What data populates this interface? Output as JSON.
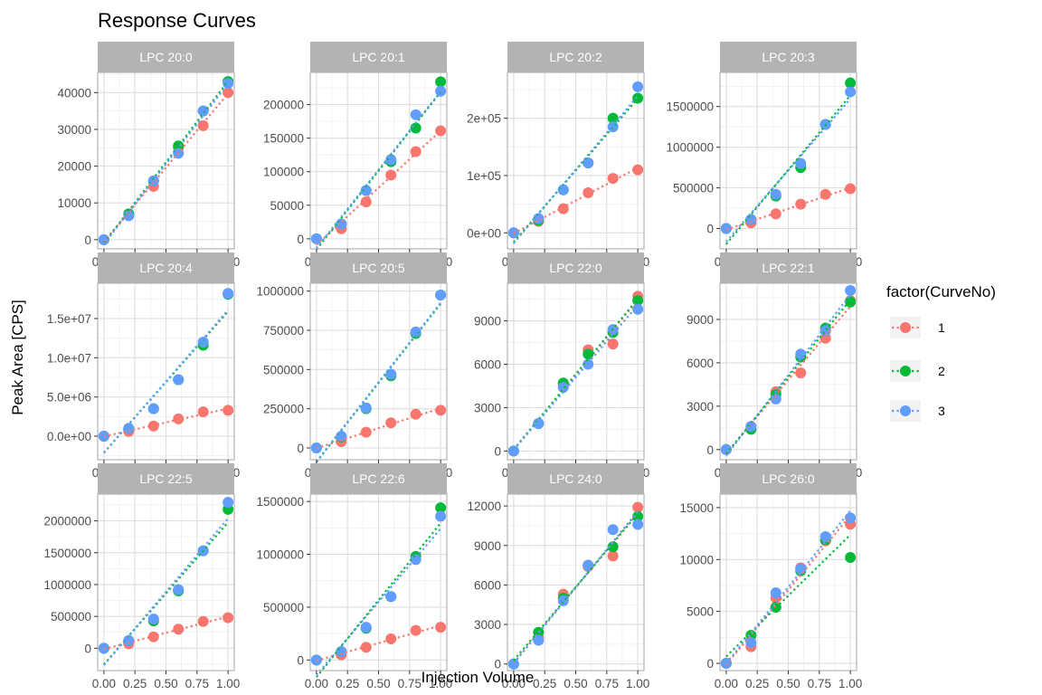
{
  "chart_data": {
    "type": "scatter",
    "title": "Response Curves",
    "xlabel": "Injection Volume",
    "ylabel": "Peak Area [CPS]",
    "legend": {
      "title": "factor(CurveNo)",
      "position": "right",
      "entries": [
        {
          "label": "1",
          "color": "#F8766D"
        },
        {
          "label": "2",
          "color": "#00BA38"
        },
        {
          "label": "3",
          "color": "#619CFF"
        }
      ]
    },
    "grid": true,
    "x": [
      0,
      0.2,
      0.4,
      0.6,
      0.8,
      1.0
    ],
    "xticks": [
      "0.00",
      "0.25",
      "0.50",
      "0.75",
      "1.00"
    ],
    "xtick_values": [
      0,
      0.25,
      0.5,
      0.75,
      1.0
    ],
    "xlim": [
      -0.05,
      1.05
    ],
    "panels": [
      {
        "title": "LPC 20:0",
        "ylim": [
          -2500,
          45500
        ],
        "yticks": [
          0,
          10000,
          20000,
          30000,
          40000
        ],
        "ytick_labels": [
          "0",
          "10000",
          "20000",
          "30000",
          "40000"
        ],
        "series": [
          {
            "name": "1",
            "values": [
              0,
              7000,
              14500,
              25000,
              31000,
              40000
            ]
          },
          {
            "name": "2",
            "values": [
              0,
              7000,
              16000,
              25500,
              35000,
              43000
            ]
          },
          {
            "name": "3",
            "values": [
              0,
              6500,
              16000,
              23500,
              35000,
              42500
            ]
          }
        ]
      },
      {
        "title": "LPC 20:1",
        "ylim": [
          -15000,
          248000
        ],
        "yticks": [
          0,
          50000,
          100000,
          150000,
          200000
        ],
        "ytick_labels": [
          "0",
          "50000",
          "100000",
          "150000",
          "200000"
        ],
        "series": [
          {
            "name": "1",
            "values": [
              0,
              15000,
              55000,
              95000,
              130000,
              161000
            ]
          },
          {
            "name": "2",
            "values": [
              0,
              22000,
              72000,
              115000,
              165000,
              234000
            ]
          },
          {
            "name": "3",
            "values": [
              0,
              22000,
              72000,
              118000,
              185000,
              220000
            ]
          }
        ]
      },
      {
        "title": "LPC 20:2",
        "ylim": [
          -28000,
          280000
        ],
        "yticks": [
          0,
          100000,
          200000
        ],
        "ytick_labels": [
          "0e+00",
          "1e+05",
          "2e+05"
        ],
        "series": [
          {
            "name": "1",
            "values": [
              0,
              20000,
              42000,
              70000,
              95000,
              110000
            ]
          },
          {
            "name": "2",
            "values": [
              0,
              22000,
              75000,
              122000,
              200000,
              235000
            ]
          },
          {
            "name": "3",
            "values": [
              0,
              25000,
              75000,
              122000,
              185000,
              255000
            ]
          }
        ]
      },
      {
        "title": "LPC 20:3",
        "ylim": [
          -250000,
          1920000
        ],
        "yticks": [
          0,
          500000,
          1000000,
          1500000
        ],
        "ytick_labels": [
          "0",
          "500000",
          "1000000",
          "1500000"
        ],
        "series": [
          {
            "name": "1",
            "values": [
              0,
              70000,
              180000,
              300000,
              420000,
              490000
            ]
          },
          {
            "name": "2",
            "values": [
              0,
              110000,
              400000,
              750000,
              1280000,
              1790000
            ]
          },
          {
            "name": "3",
            "values": [
              0,
              110000,
              420000,
              800000,
              1280000,
              1680000
            ]
          }
        ]
      },
      {
        "title": "LPC 20:4",
        "ylim": [
          -3000000,
          19500000
        ],
        "yticks": [
          0,
          5000000,
          10000000,
          15000000
        ],
        "ytick_labels": [
          "0.0e+00",
          "5.0e+06",
          "1.0e+07",
          "1.5e+07"
        ],
        "series": [
          {
            "name": "1",
            "values": [
              0,
              600000,
              1300000,
              2200000,
              3100000,
              3300000
            ]
          },
          {
            "name": "2",
            "values": [
              0,
              1000000,
              3500000,
              7200000,
              11600000,
              18100000
            ]
          },
          {
            "name": "3",
            "values": [
              0,
              1000000,
              3500000,
              7200000,
              12000000,
              18200000
            ]
          }
        ]
      },
      {
        "title": "LPC 20:5",
        "ylim": [
          -75000,
          1050000
        ],
        "yticks": [
          0,
          250000,
          500000,
          750000,
          1000000
        ],
        "ytick_labels": [
          "0",
          "250000",
          "500000",
          "750000",
          "1000000"
        ],
        "series": [
          {
            "name": "1",
            "values": [
              0,
              40000,
              100000,
              160000,
              215000,
              240000
            ]
          },
          {
            "name": "2",
            "values": [
              0,
              70000,
              250000,
              460000,
              730000,
              975000
            ]
          },
          {
            "name": "3",
            "values": [
              0,
              75000,
              255000,
              470000,
              740000,
              975000
            ]
          }
        ]
      },
      {
        "title": "LPC 22:0",
        "ylim": [
          -600,
          11600
        ],
        "yticks": [
          0,
          3000,
          6000,
          9000
        ],
        "ytick_labels": [
          "0",
          "3000",
          "6000",
          "9000"
        ],
        "series": [
          {
            "name": "1",
            "values": [
              0,
              1900,
              4600,
              7000,
              7400,
              10700
            ]
          },
          {
            "name": "2",
            "values": [
              0,
              1900,
              4700,
              6700,
              8200,
              10400
            ]
          },
          {
            "name": "3",
            "values": [
              0,
              1900,
              4400,
              6000,
              8400,
              9800
            ]
          }
        ]
      },
      {
        "title": "LPC 22:1",
        "ylim": [
          -700,
          11500
        ],
        "yticks": [
          0,
          3000,
          6000,
          9000
        ],
        "ytick_labels": [
          "0",
          "3000",
          "6000",
          "9000"
        ],
        "series": [
          {
            "name": "1",
            "values": [
              0,
              1600,
              4000,
              5300,
              7700,
              10300
            ]
          },
          {
            "name": "2",
            "values": [
              0,
              1400,
              3800,
              6400,
              8400,
              10200
            ]
          },
          {
            "name": "3",
            "values": [
              0,
              1600,
              3500,
              6600,
              8200,
              11000
            ]
          }
        ]
      },
      {
        "title": "LPC 22:5",
        "ylim": [
          -350000,
          2420000
        ],
        "yticks": [
          0,
          500000,
          1000000,
          1500000,
          2000000
        ],
        "ytick_labels": [
          "0",
          "500000",
          "1000000",
          "1500000",
          "2000000"
        ],
        "series": [
          {
            "name": "1",
            "values": [
              0,
              70000,
              180000,
              300000,
              420000,
              480000
            ]
          },
          {
            "name": "2",
            "values": [
              0,
              120000,
              430000,
              900000,
              1530000,
              2180000
            ]
          },
          {
            "name": "3",
            "values": [
              0,
              120000,
              460000,
              920000,
              1530000,
              2290000
            ]
          }
        ]
      },
      {
        "title": "LPC 22:6",
        "ylim": [
          -100000,
          1570000
        ],
        "yticks": [
          0,
          500000,
          1000000,
          1500000
        ],
        "ytick_labels": [
          "0",
          "500000",
          "1000000",
          "1500000"
        ],
        "series": [
          {
            "name": "1",
            "values": [
              0,
              50000,
              120000,
              200000,
              280000,
              310000
            ]
          },
          {
            "name": "2",
            "values": [
              0,
              80000,
              300000,
              600000,
              980000,
              1440000
            ]
          },
          {
            "name": "3",
            "values": [
              0,
              80000,
              310000,
              600000,
              950000,
              1360000
            ]
          }
        ]
      },
      {
        "title": "LPC 24:0",
        "ylim": [
          -500,
          12900
        ],
        "yticks": [
          0,
          3000,
          6000,
          9000,
          12000
        ],
        "ytick_labels": [
          "0",
          "3000",
          "6000",
          "9000",
          "12000"
        ],
        "series": [
          {
            "name": "1",
            "values": [
              0,
              2000,
              5300,
              7400,
              8200,
              11900
            ]
          },
          {
            "name": "2",
            "values": [
              0,
              2400,
              5000,
              7500,
              8900,
              11200
            ]
          },
          {
            "name": "3",
            "values": [
              0,
              1800,
              4800,
              7500,
              10200,
              10600
            ]
          }
        ]
      },
      {
        "title": "LPC 26:0",
        "ylim": [
          -700,
          16300
        ],
        "yticks": [
          0,
          5000,
          10000,
          15000
        ],
        "ytick_labels": [
          "0",
          "5000",
          "10000",
          "15000"
        ],
        "series": [
          {
            "name": "1",
            "values": [
              0,
              1600,
              6300,
              9200,
              11800,
              13400
            ]
          },
          {
            "name": "2",
            "values": [
              0,
              2700,
              5400,
              8900,
              11900,
              10200
            ]
          },
          {
            "name": "3",
            "values": [
              0,
              2000,
              6800,
              9100,
              12200,
              14000
            ]
          }
        ]
      }
    ]
  }
}
